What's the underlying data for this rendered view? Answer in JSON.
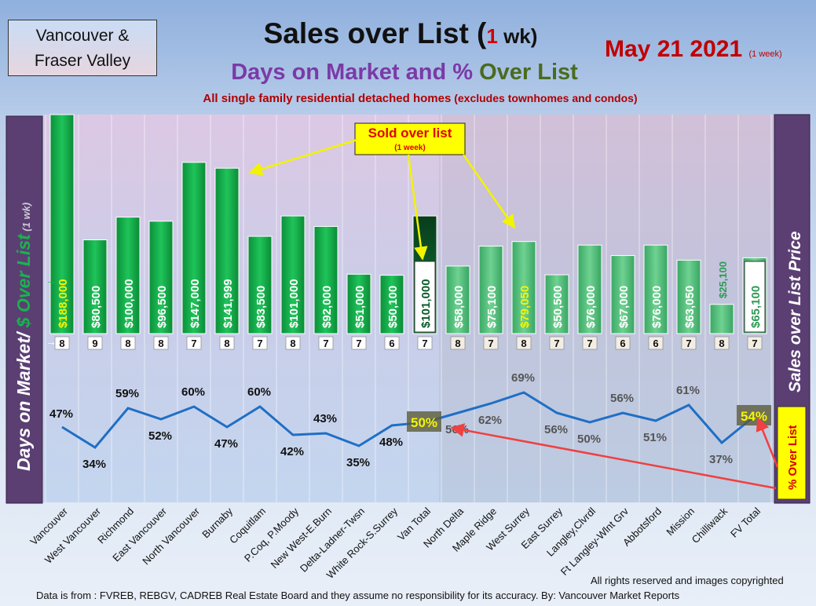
{
  "header": {
    "region_line1": "Vancouver &",
    "region_line2": "Fraser Valley",
    "title_pre": "Sales over List (",
    "title_num": "1",
    "title_unit": " wk)",
    "subtitle_a": "Days on Market and % ",
    "subtitle_b": "Over List",
    "subtitle2_main": "All single family residential detached homes",
    "subtitle2_paren": " (excludes townhomes and condos)",
    "date": "May 21  2021",
    "date_note": "(1 week)"
  },
  "left_axis": {
    "part1": "Days on Market/ ",
    "part2": "$ Over List",
    "part3": " (1 wk)"
  },
  "right_axis": {
    "label": "Sales over List Price"
  },
  "callouts": {
    "sold_title": "Sold over list",
    "sold_note": "(1 week)",
    "pct_label": "% Over List"
  },
  "footer": {
    "rights": "All rights reserved and  images copyrighted",
    "source": "Data is from : FVREB, REBGV, CADREB Real Estate Board and they assume no responsibility for its accuracy. By: Vancouver Market Reports"
  },
  "colors": {
    "bar_green": "#12b04a",
    "bar_light": "#57c97d",
    "bar_dark": "#0a5a2a",
    "line": "#1f6fc5",
    "arrow_yellow": "#f3f300",
    "arrow_red": "#f04040",
    "panel_purple": "#5b3f73"
  },
  "chart_data": {
    "type": "bar",
    "categories": [
      "Vancouver",
      "West Vancouver",
      "Richmond",
      "East Vancouver",
      "North Vancouver",
      "Burnaby",
      "Coquitlam",
      "P.Coq, P.Moody",
      "New West-E.Burn",
      "Delta-Ladner-Twsn",
      "White Rock-S.Surrey",
      "Van Total",
      "North Delta",
      "Maple Ridge",
      "West Surrey",
      "East Surrey",
      "Langley,Clvrdl",
      "Ft Langley-Wlnt Grv",
      "Abbotsford",
      "Mission",
      "Chilliwack",
      "FV Total"
    ],
    "series": [
      {
        "name": "$ Over List",
        "values": [
          188000,
          80500,
          100000,
          96500,
          147000,
          141999,
          83500,
          101000,
          92000,
          51000,
          50100,
          101000,
          58000,
          75100,
          79050,
          50500,
          76000,
          67000,
          76000,
          63050,
          25100,
          65100
        ],
        "labels": [
          "$188,000",
          "$80,500",
          "$100,000",
          "$96,500",
          "$147,000",
          "$141,999",
          "$83,500",
          "$101,000",
          "$92,000",
          "$51,000",
          "$50,100",
          "$101,000",
          "$58,000",
          "$75,100",
          "$79,050",
          "$50,500",
          "$76,000",
          "$67,000",
          "$76,000",
          "$63,050",
          "$25,100",
          "$65,100"
        ]
      },
      {
        "name": "Days on Market",
        "values": [
          8,
          9,
          8,
          8,
          7,
          8,
          7,
          8,
          7,
          7,
          6,
          7,
          8,
          7,
          8,
          7,
          7,
          6,
          6,
          7,
          8,
          7
        ]
      },
      {
        "name": "% Over List",
        "values": [
          47,
          34,
          59,
          52,
          60,
          47,
          60,
          42,
          43,
          35,
          48,
          50,
          56,
          62,
          69,
          56,
          50,
          56,
          51,
          61,
          37,
          54
        ],
        "labels": [
          "47%",
          "34%",
          "59%",
          "52%",
          "60%",
          "47%",
          "60%",
          "42%",
          "43%",
          "35%",
          "48%",
          "50%",
          "56%",
          "62%",
          "69%",
          "56%",
          "50%",
          "56%",
          "51%",
          "61%",
          "37%",
          "54%"
        ]
      }
    ]
  }
}
